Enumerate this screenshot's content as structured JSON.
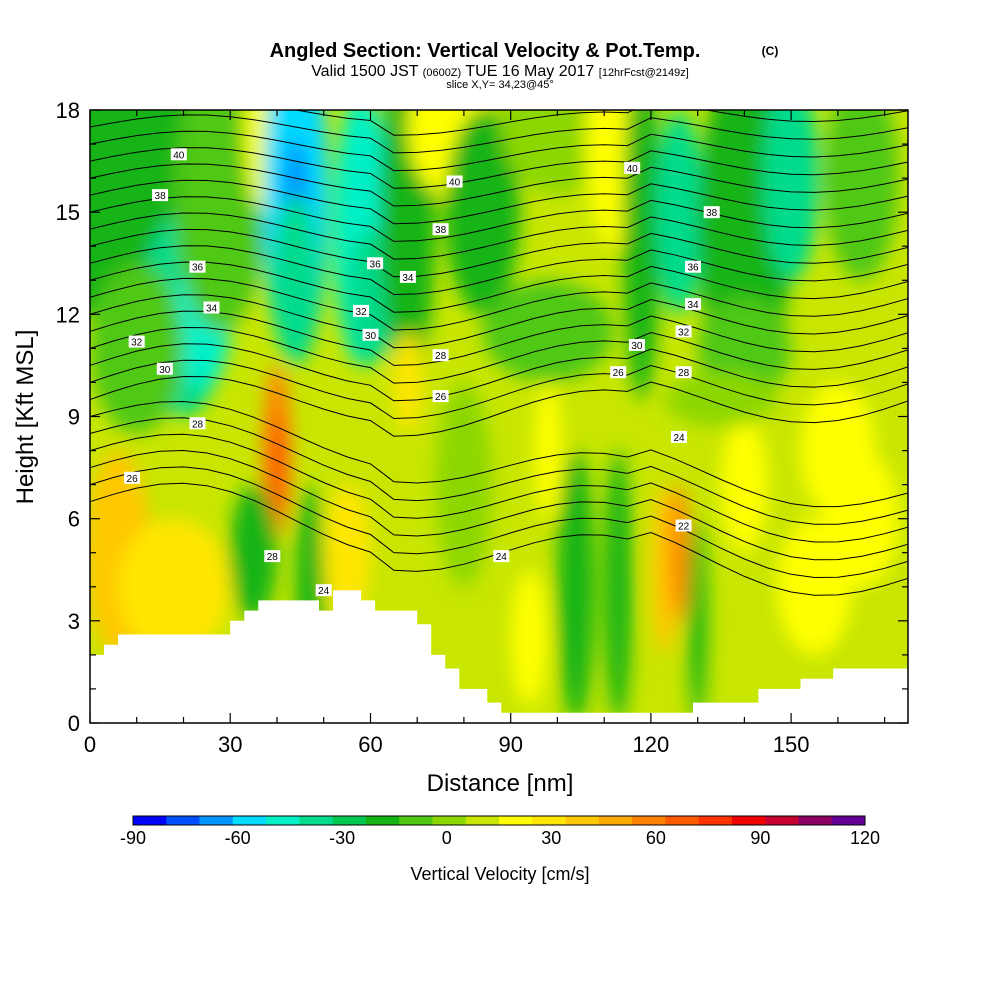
{
  "header": {
    "title": "Angled Section: Vertical Velocity & Pot.Temp.",
    "title_suffix": "(C)",
    "valid_main_1": "Valid 1500 JST",
    "valid_small_1": "(0600Z)",
    "valid_main_2": "TUE 16 May 2017",
    "valid_small_2": "[12hrFcst@2149z]",
    "slice": "slice X,Y= 34,23@45°"
  },
  "chart_data": {
    "type": "heatmap",
    "title": "Angled Section: Vertical Velocity & Pot.Temp.",
    "xlabel": "Distance [nm]",
    "ylabel": "Height [Kft MSL]",
    "xlim": [
      0,
      175
    ],
    "ylim": [
      0,
      18
    ],
    "x_ticks": [
      0,
      30,
      60,
      90,
      120,
      150
    ],
    "y_ticks": [
      0,
      3,
      6,
      9,
      12,
      15,
      18
    ],
    "colorbar": {
      "label": "Vertical Velocity [cm/s]",
      "tick_values": [
        -90,
        -60,
        -30,
        0,
        30,
        60,
        90,
        120
      ],
      "range": [
        -90,
        120
      ],
      "colors": [
        "#0000ff",
        "#0050ff",
        "#0096ff",
        "#00dcff",
        "#00f0c8",
        "#00dc8c",
        "#00c850",
        "#14b414",
        "#50c814",
        "#8cd700",
        "#c8e600",
        "#ffff00",
        "#ffe600",
        "#ffc800",
        "#ffaa00",
        "#ff8200",
        "#ff5a00",
        "#ff3200",
        "#f00000",
        "#c80032",
        "#8c0064",
        "#640096"
      ]
    },
    "contour_labels": [
      {
        "x": 19,
        "y": 16.7,
        "text": "40"
      },
      {
        "x": 15,
        "y": 15.5,
        "text": "38"
      },
      {
        "x": 23,
        "y": 13.4,
        "text": "36"
      },
      {
        "x": 26,
        "y": 12.2,
        "text": "34"
      },
      {
        "x": 10,
        "y": 11.2,
        "text": "32"
      },
      {
        "x": 16,
        "y": 10.4,
        "text": "30"
      },
      {
        "x": 23,
        "y": 8.8,
        "text": "28"
      },
      {
        "x": 9,
        "y": 7.2,
        "text": "26"
      },
      {
        "x": 39,
        "y": 4.9,
        "text": "28"
      },
      {
        "x": 50,
        "y": 3.9,
        "text": "24"
      },
      {
        "x": 78,
        "y": 15.9,
        "text": "40"
      },
      {
        "x": 75,
        "y": 14.5,
        "text": "38"
      },
      {
        "x": 61,
        "y": 13.5,
        "text": "36"
      },
      {
        "x": 68,
        "y": 13.1,
        "text": "34"
      },
      {
        "x": 58,
        "y": 12.1,
        "text": "32"
      },
      {
        "x": 60,
        "y": 11.4,
        "text": "30"
      },
      {
        "x": 75,
        "y": 10.8,
        "text": "28"
      },
      {
        "x": 75,
        "y": 9.6,
        "text": "26"
      },
      {
        "x": 88,
        "y": 4.9,
        "text": "24"
      },
      {
        "x": 116,
        "y": 16.3,
        "text": "40"
      },
      {
        "x": 133,
        "y": 15.0,
        "text": "38"
      },
      {
        "x": 129,
        "y": 13.4,
        "text": "36"
      },
      {
        "x": 129,
        "y": 12.3,
        "text": "34"
      },
      {
        "x": 127,
        "y": 11.5,
        "text": "32"
      },
      {
        "x": 117,
        "y": 11.1,
        "text": "30"
      },
      {
        "x": 113,
        "y": 10.3,
        "text": "26"
      },
      {
        "x": 127,
        "y": 10.3,
        "text": "28"
      },
      {
        "x": 126,
        "y": 8.4,
        "text": "24"
      },
      {
        "x": 127,
        "y": 5.8,
        "text": "22"
      }
    ]
  }
}
